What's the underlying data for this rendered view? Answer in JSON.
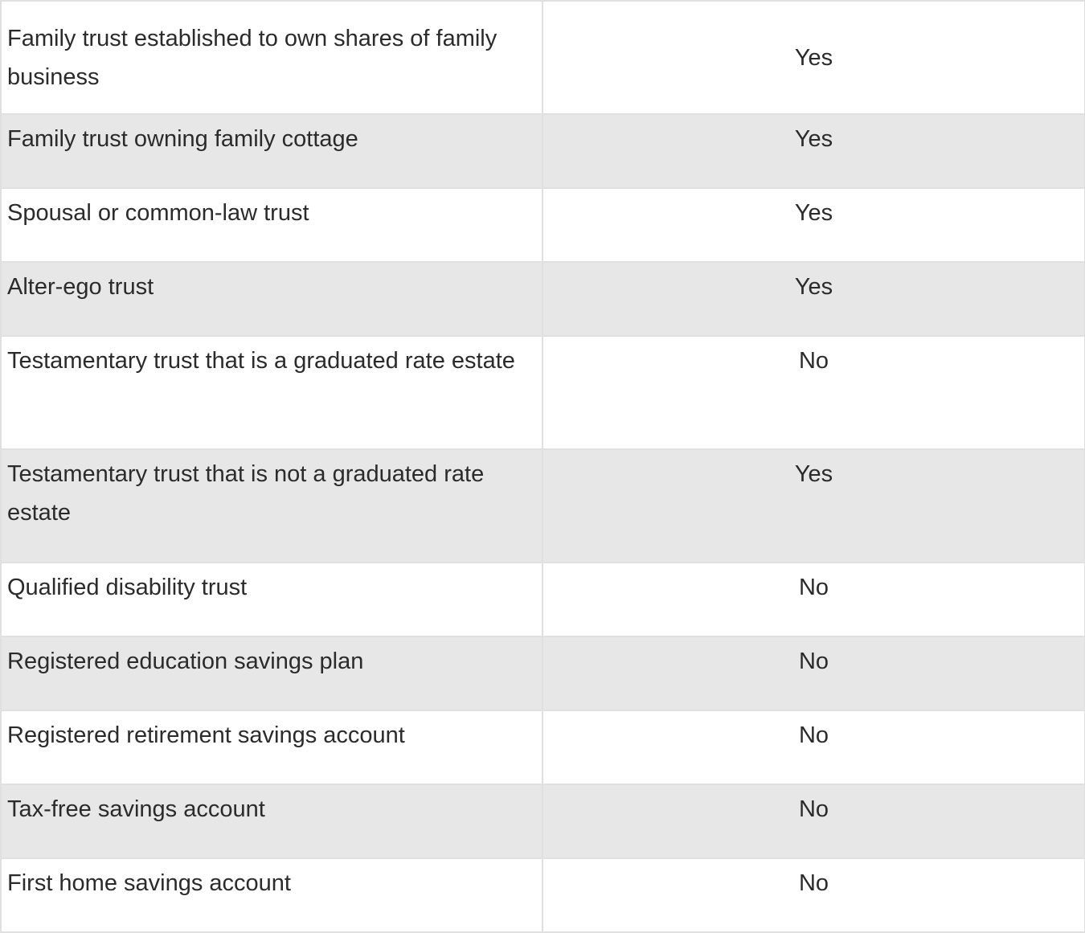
{
  "table": {
    "rows": [
      {
        "label": "Family trust established to own shares of family business",
        "value": "Yes"
      },
      {
        "label": "Family trust owning family cottage",
        "value": "Yes"
      },
      {
        "label": "Spousal or common-law trust",
        "value": "Yes"
      },
      {
        "label": "Alter-ego trust",
        "value": "Yes"
      },
      {
        "label": "Testamentary trust that is a graduated rate estate",
        "value": "No"
      },
      {
        "label": "Testamentary trust that is not a graduated rate estate",
        "value": "Yes"
      },
      {
        "label": "Qualified disability trust",
        "value": "No"
      },
      {
        "label": "Registered education savings plan",
        "value": "No"
      },
      {
        "label": "Registered retirement savings account",
        "value": "No"
      },
      {
        "label": "Tax-free savings account",
        "value": "No"
      },
      {
        "label": "First home savings account",
        "value": "No"
      }
    ]
  },
  "colors": {
    "border": "#e0e0e0",
    "row_alt_background": "#e7e7e7",
    "text": "#2b2b2b"
  }
}
